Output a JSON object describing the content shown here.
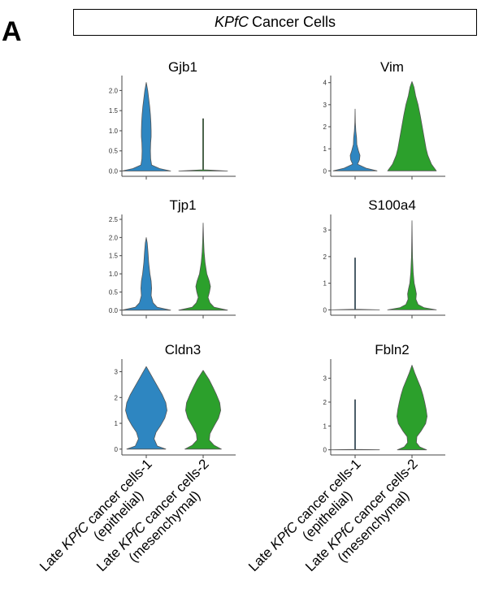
{
  "panel_label": "A",
  "header": {
    "italic": "KPfC",
    "rest": "Cancer Cells"
  },
  "chart_data": [
    {
      "type": "violin",
      "title": "Gjb1",
      "yticks": [
        "0.0",
        "0.5",
        "1.0",
        "1.5",
        "2.0"
      ],
      "ylim": [
        -0.05,
        2.25
      ],
      "series": [
        {
          "color": "#2e86c1",
          "max": 2.2,
          "profile": [
            [
              0,
              1.0
            ],
            [
              0.06,
              0.55
            ],
            [
              0.15,
              0.22
            ],
            [
              0.3,
              0.18
            ],
            [
              0.5,
              0.17
            ],
            [
              0.7,
              0.18
            ],
            [
              0.85,
              0.2
            ],
            [
              1.0,
              0.2
            ],
            [
              1.2,
              0.19
            ],
            [
              1.4,
              0.17
            ],
            [
              1.6,
              0.14
            ],
            [
              1.8,
              0.1
            ],
            [
              2.0,
              0.06
            ],
            [
              2.2,
              0.0
            ]
          ]
        },
        {
          "color": "#2ca02c",
          "max": 1.3,
          "profile": [
            [
              0,
              1.0
            ],
            [
              0.03,
              0.02
            ],
            [
              1.3,
              0.02
            ]
          ]
        }
      ]
    },
    {
      "type": "violin",
      "title": "Vim",
      "yticks": [
        "0",
        "1",
        "2",
        "3",
        "4"
      ],
      "ylim": [
        -0.1,
        4.1
      ],
      "series": [
        {
          "color": "#2e86c1",
          "max": 2.8,
          "profile": [
            [
              0,
              0.9
            ],
            [
              0.12,
              0.45
            ],
            [
              0.3,
              0.1
            ],
            [
              0.5,
              0.18
            ],
            [
              0.7,
              0.2
            ],
            [
              0.9,
              0.14
            ],
            [
              1.2,
              0.07
            ],
            [
              1.5,
              0.06
            ],
            [
              1.8,
              0.03
            ],
            [
              2.2,
              0.01
            ],
            [
              2.8,
              0.0
            ]
          ]
        },
        {
          "color": "#2ca02c",
          "max": 4.05,
          "profile": [
            [
              0,
              1.0
            ],
            [
              0.3,
              0.8
            ],
            [
              0.7,
              0.65
            ],
            [
              1.0,
              0.58
            ],
            [
              1.5,
              0.5
            ],
            [
              2.0,
              0.42
            ],
            [
              2.5,
              0.34
            ],
            [
              3.0,
              0.25
            ],
            [
              3.4,
              0.15
            ],
            [
              3.8,
              0.08
            ],
            [
              4.05,
              0.0
            ]
          ]
        }
      ]
    },
    {
      "type": "violin",
      "title": "Tjp1",
      "yticks": [
        "0.0",
        "0.5",
        "1.0",
        "1.5",
        "2.0",
        "2.5"
      ],
      "ylim": [
        -0.05,
        2.5
      ],
      "series": [
        {
          "color": "#2e86c1",
          "max": 2.0,
          "profile": [
            [
              0,
              1.0
            ],
            [
              0.08,
              0.45
            ],
            [
              0.2,
              0.28
            ],
            [
              0.4,
              0.2
            ],
            [
              0.6,
              0.22
            ],
            [
              0.8,
              0.2
            ],
            [
              1.0,
              0.15
            ],
            [
              1.3,
              0.1
            ],
            [
              1.6,
              0.07
            ],
            [
              1.85,
              0.04
            ],
            [
              2.0,
              0.0
            ]
          ]
        },
        {
          "color": "#2ca02c",
          "max": 2.4,
          "profile": [
            [
              0,
              1.0
            ],
            [
              0.08,
              0.45
            ],
            [
              0.2,
              0.28
            ],
            [
              0.35,
              0.2
            ],
            [
              0.5,
              0.26
            ],
            [
              0.65,
              0.3
            ],
            [
              0.8,
              0.25
            ],
            [
              1.0,
              0.15
            ],
            [
              1.3,
              0.08
            ],
            [
              1.6,
              0.04
            ],
            [
              1.9,
              0.02
            ],
            [
              2.4,
              0.0
            ]
          ]
        }
      ]
    },
    {
      "type": "violin",
      "title": "S100a4",
      "yticks": [
        "0",
        "1",
        "2",
        "3"
      ],
      "ylim": [
        -0.08,
        3.4
      ],
      "series": [
        {
          "color": "#2e86c1",
          "max": 1.95,
          "profile": [
            [
              0,
              1.0
            ],
            [
              0.02,
              0.02
            ],
            [
              1.95,
              0.02
            ]
          ]
        },
        {
          "color": "#2ca02c",
          "max": 3.35,
          "profile": [
            [
              0,
              1.0
            ],
            [
              0.08,
              0.5
            ],
            [
              0.2,
              0.25
            ],
            [
              0.4,
              0.16
            ],
            [
              0.6,
              0.18
            ],
            [
              0.8,
              0.14
            ],
            [
              1.0,
              0.09
            ],
            [
              1.4,
              0.05
            ],
            [
              2.0,
              0.02
            ],
            [
              2.6,
              0.01
            ],
            [
              3.35,
              0.0
            ]
          ]
        }
      ]
    },
    {
      "type": "violin",
      "title": "Cldn3",
      "yticks": [
        "0",
        "1",
        "2",
        "3"
      ],
      "ylim": [
        -0.1,
        3.3
      ],
      "series": [
        {
          "color": "#2e86c1",
          "max": 3.2,
          "profile": [
            [
              0,
              0.8
            ],
            [
              0.12,
              0.45
            ],
            [
              0.4,
              0.32
            ],
            [
              0.65,
              0.4
            ],
            [
              0.9,
              0.58
            ],
            [
              1.2,
              0.76
            ],
            [
              1.5,
              0.85
            ],
            [
              1.8,
              0.8
            ],
            [
              2.1,
              0.66
            ],
            [
              2.4,
              0.48
            ],
            [
              2.7,
              0.3
            ],
            [
              2.95,
              0.15
            ],
            [
              3.2,
              0.0
            ]
          ]
        },
        {
          "color": "#2ca02c",
          "max": 3.05,
          "profile": [
            [
              0,
              0.75
            ],
            [
              0.15,
              0.45
            ],
            [
              0.35,
              0.25
            ],
            [
              0.6,
              0.28
            ],
            [
              0.9,
              0.45
            ],
            [
              1.2,
              0.63
            ],
            [
              1.5,
              0.72
            ],
            [
              1.8,
              0.68
            ],
            [
              2.1,
              0.55
            ],
            [
              2.4,
              0.4
            ],
            [
              2.7,
              0.24
            ],
            [
              3.05,
              0.0
            ]
          ]
        }
      ]
    },
    {
      "type": "violin",
      "title": "Fbln2",
      "yticks": [
        "0",
        "1",
        "2",
        "3"
      ],
      "ylim": [
        -0.08,
        3.6
      ],
      "series": [
        {
          "color": "#2e86c1",
          "max": 2.1,
          "profile": [
            [
              0,
              1.0
            ],
            [
              0.02,
              0.02
            ],
            [
              2.1,
              0.02
            ]
          ]
        },
        {
          "color": "#2ca02c",
          "max": 3.55,
          "profile": [
            [
              0,
              0.6
            ],
            [
              0.12,
              0.32
            ],
            [
              0.3,
              0.18
            ],
            [
              0.55,
              0.2
            ],
            [
              0.8,
              0.38
            ],
            [
              1.1,
              0.56
            ],
            [
              1.4,
              0.62
            ],
            [
              1.7,
              0.58
            ],
            [
              2.0,
              0.52
            ],
            [
              2.3,
              0.45
            ],
            [
              2.6,
              0.36
            ],
            [
              2.9,
              0.24
            ],
            [
              3.2,
              0.12
            ],
            [
              3.55,
              0.0
            ]
          ]
        }
      ]
    }
  ],
  "x_labels": [
    {
      "pre": "Late ",
      "italic": "KPfC",
      "post": " cancer cells-1",
      "line2": "(epithelial)"
    },
    {
      "pre": "Late ",
      "italic": "KPfC",
      "post": " cancer cells-2",
      "line2": "(mesenchymal)"
    }
  ]
}
